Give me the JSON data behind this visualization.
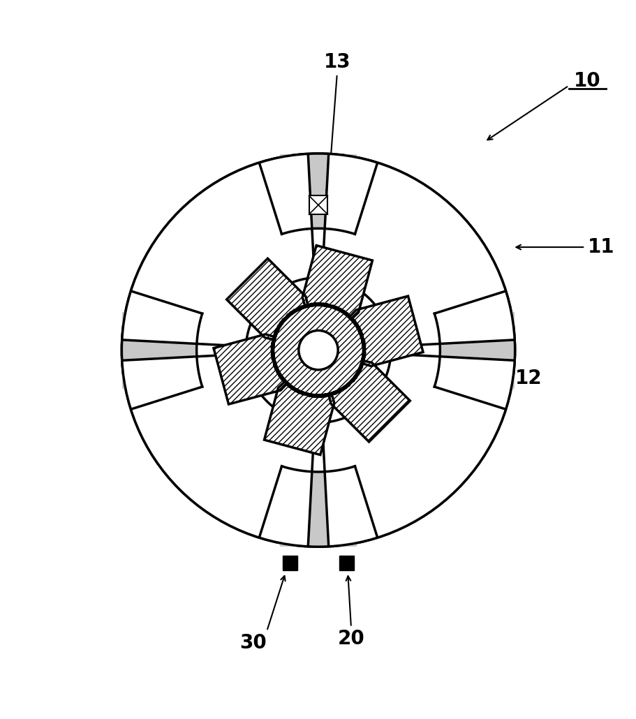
{
  "bg": "#ffffff",
  "lc": "#000000",
  "gray": "#c8c8c8",
  "OR": 0.42,
  "stator_pole_angles": [
    90,
    0,
    270,
    180
  ],
  "stator_pole_hw": 0.082,
  "stator_pole_inner_r": 0.26,
  "stator_slot_inner_r": 0.155,
  "rotor_pole_angles": [
    75,
    15,
    -45,
    -105,
    -165,
    -225
  ],
  "rotor_tip_r": 0.215,
  "rotor_hub_r": 0.1,
  "rotor_pole_hw": 0.062,
  "shaft_r": 0.042,
  "lw": 2.5,
  "lw_thin": 1.8,
  "fig_w": 9.12,
  "fig_h": 10.3,
  "dpi": 100,
  "xlim": [
    -0.68,
    0.68
  ],
  "ylim": [
    -0.7,
    0.66
  ]
}
